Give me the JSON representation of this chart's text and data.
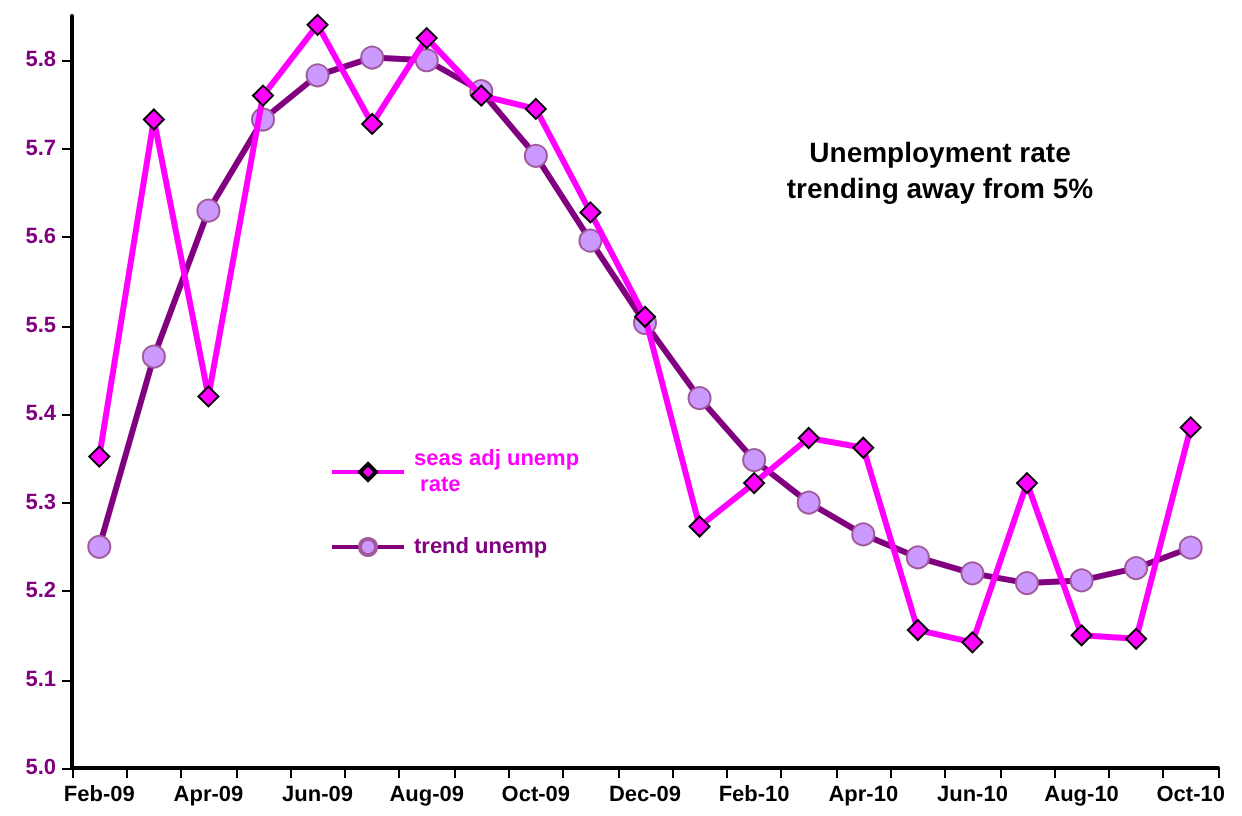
{
  "chart_data": {
    "type": "line",
    "title": "Unemployment rate\ntrending away from 5%",
    "categories": [
      "Feb-09",
      null,
      "Apr-09",
      null,
      "Jun-09",
      null,
      "Aug-09",
      null,
      "Oct-09",
      null,
      "Dec-09",
      null,
      "Feb-10",
      null,
      "Apr-10",
      null,
      "Jun-10",
      null,
      "Aug-10",
      null,
      "Oct-10"
    ],
    "series": [
      {
        "name": "seas adj unemp rate",
        "color": "#ff00ff",
        "marker": "diamond",
        "values": [
          5.352,
          5.733,
          5.42,
          5.76,
          5.84,
          5.728,
          5.825,
          5.76,
          5.745,
          5.628,
          5.51,
          5.273,
          5.322,
          5.373,
          5.362,
          5.156,
          5.142,
          5.322,
          5.15,
          5.146,
          5.385
        ]
      },
      {
        "name": "trend unemp",
        "color": "#800080",
        "marker": "circle",
        "values": [
          5.25,
          5.465,
          5.63,
          5.733,
          5.783,
          5.803,
          5.8,
          5.765,
          5.692,
          5.596,
          5.503,
          5.418,
          5.348,
          5.3,
          5.264,
          5.238,
          5.22,
          5.209,
          5.212,
          5.226,
          5.249
        ]
      }
    ],
    "ylim": [
      5.0,
      5.85
    ],
    "yticks": [
      {
        "value": 5,
        "label": "5.0"
      },
      {
        "value": 5.1,
        "label": "5.1"
      },
      {
        "value": 5.2,
        "label": "5.2"
      },
      {
        "value": 5.3,
        "label": "5.3"
      },
      {
        "value": 5.4,
        "label": "5.4"
      },
      {
        "value": 5.5,
        "label": "5.5"
      },
      {
        "value": 5.6,
        "label": "5.6"
      },
      {
        "value": 5.7,
        "label": "5.7"
      },
      {
        "value": 5.8,
        "label": "5.8"
      }
    ],
    "grid": false,
    "legend": "center"
  }
}
